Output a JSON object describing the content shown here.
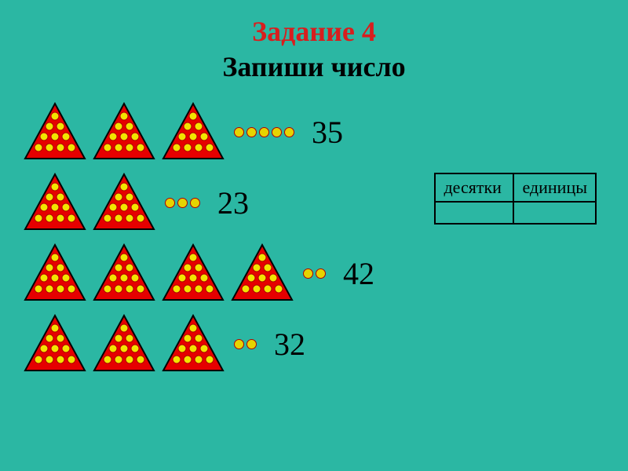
{
  "title": {
    "main": "Задание 4",
    "sub": "Запиши число",
    "main_color": "#d81e1e",
    "sub_color": "#000000",
    "fontsize": 36
  },
  "background_color": "#2bb7a3",
  "triangle": {
    "fill": "#e60000",
    "stroke": "#000000",
    "dot_fill": "#f2e400",
    "dot_stroke": "#b00000",
    "dots_per_triangle": 10
  },
  "unit_dot": {
    "fill": "#e6d400",
    "stroke": "#b00000",
    "size": 13
  },
  "rows": [
    {
      "tens": 3,
      "units": 5,
      "answer": "35"
    },
    {
      "tens": 2,
      "units": 3,
      "answer": "23"
    },
    {
      "tens": 4,
      "units": 2,
      "answer": "42"
    },
    {
      "tens": 3,
      "units": 2,
      "answer": "32"
    }
  ],
  "answer_fontsize": 40,
  "table": {
    "headers": [
      "десятки",
      "единицы"
    ],
    "fontsize": 22,
    "border_color": "#000000",
    "tens_value": "",
    "units_value": ""
  }
}
